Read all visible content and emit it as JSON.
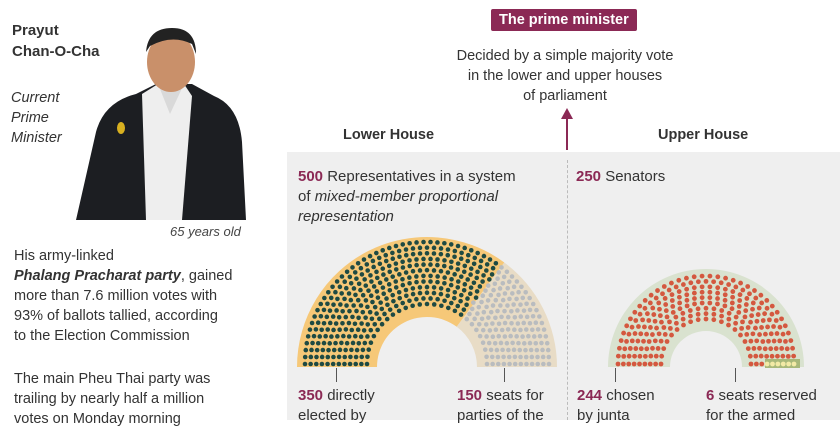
{
  "profile": {
    "name_line1": "Prayut",
    "name_line2": "Chan-O-Cha",
    "role_line1": "Current",
    "role_line2": "Prime",
    "role_line3": "Minister",
    "age": "65 years old",
    "para1_line1": "His army-linked",
    "para1_party": "Phalang Pracharat party",
    "para1_rest1": ", gained",
    "para1_line3": "more than 7.6 million votes with",
    "para1_line4": "93% of ballots tallied,  according",
    "para1_line5": "to the Election Commission",
    "para2_line1": "The main Pheu Thai party was",
    "para2_line2": "trailing by nearly half a million",
    "para2_line3": "votes on Monday morning"
  },
  "pm": {
    "badge": "The prime minister",
    "desc_line1": "Decided by a simple majority vote",
    "desc_line2": "in the lower and upper houses",
    "desc_line3": "of parliament"
  },
  "lower": {
    "title": "Lower House",
    "total": "500",
    "desc1": " Representatives in a system",
    "desc2_a": "of ",
    "desc2_b": "mixed-member proportional",
    "desc3": "representation",
    "seg1_num": "350",
    "seg1_text": " directly",
    "seg1_line2": "elected by",
    "seg2_num": "150",
    "seg2_text": " seats for",
    "seg2_line2": "parties of the",
    "seats": [
      350,
      150
    ],
    "colors": {
      "seat1": "#1e4a43",
      "seat2": "#b9bcbf",
      "bg1": "#f6c878",
      "bg2": "#e8dcc6"
    }
  },
  "upper": {
    "title": "Upper House",
    "total": "250",
    "desc1": " Senators",
    "seg1_num": "244",
    "seg1_text": " chosen",
    "seg1_line2": "by junta",
    "seg2_num": "6",
    "seg2_text": " seats reserved",
    "seg2_line2": "for the armed",
    "seats": [
      244,
      6
    ],
    "colors": {
      "seat1": "#d4583f",
      "seat2": "#f3eaa6",
      "bg1": "#d9e2cf",
      "bg2": "#a8b87a"
    }
  },
  "accent": "#8b2955"
}
